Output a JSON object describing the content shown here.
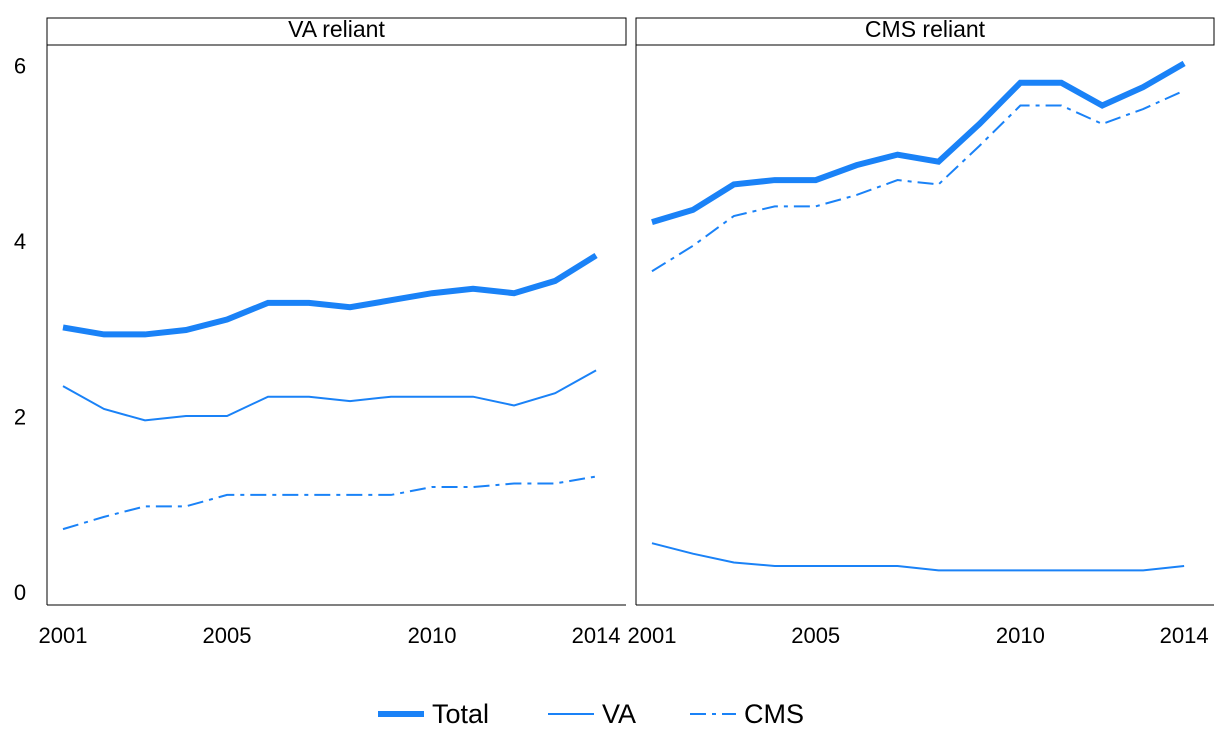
{
  "chart_data": [
    {
      "type": "line",
      "title": "VA reliant",
      "x": [
        2001,
        2002,
        2003,
        2004,
        2005,
        2006,
        2007,
        2008,
        2009,
        2010,
        2011,
        2012,
        2013,
        2014
      ],
      "xlim": [
        2000.61,
        2014.73
      ],
      "xticks": [
        2001,
        2005,
        2010,
        2014
      ],
      "ylim": [
        -0.125,
        6.26
      ],
      "yticks": [
        0,
        2,
        4,
        6
      ],
      "legend": "bottom",
      "series": [
        {
          "name": "Total",
          "color": "#1a82f7",
          "linewidth": 6,
          "linestyle": "solid",
          "values": [
            3.04,
            2.96,
            2.96,
            3.01,
            3.13,
            3.32,
            3.32,
            3.27,
            3.35,
            3.43,
            3.48,
            3.43,
            3.57,
            3.86
          ]
        },
        {
          "name": "VA",
          "color": "#1a82f7",
          "linewidth": 2,
          "linestyle": "solid",
          "values": [
            2.37,
            2.11,
            1.98,
            2.03,
            2.03,
            2.25,
            2.25,
            2.2,
            2.25,
            2.25,
            2.25,
            2.15,
            2.29,
            2.55
          ]
        },
        {
          "name": "CMS",
          "color": "#1a82f7",
          "linewidth": 2,
          "linestyle": "dashdot",
          "values": [
            0.74,
            0.88,
            1.0,
            1.0,
            1.13,
            1.13,
            1.13,
            1.13,
            1.13,
            1.22,
            1.22,
            1.26,
            1.26,
            1.34
          ]
        }
      ]
    },
    {
      "type": "line",
      "title": "CMS reliant",
      "x": [
        2001,
        2002,
        2003,
        2004,
        2005,
        2006,
        2007,
        2008,
        2009,
        2010,
        2011,
        2012,
        2013,
        2014
      ],
      "xlim": [
        2000.61,
        2014.73
      ],
      "xticks": [
        2001,
        2005,
        2010,
        2014
      ],
      "ylim": [
        -0.125,
        6.26
      ],
      "series": [
        {
          "name": "Total",
          "color": "#1a82f7",
          "linewidth": 6,
          "linestyle": "solid",
          "values": [
            4.24,
            4.38,
            4.67,
            4.72,
            4.72,
            4.89,
            5.01,
            4.93,
            5.36,
            5.83,
            5.83,
            5.57,
            5.78,
            6.05
          ]
        },
        {
          "name": "VA",
          "color": "#1a82f7",
          "linewidth": 2,
          "linestyle": "solid",
          "values": [
            0.58,
            0.46,
            0.36,
            0.32,
            0.32,
            0.32,
            0.32,
            0.27,
            0.27,
            0.27,
            0.27,
            0.27,
            0.27,
            0.32
          ]
        },
        {
          "name": "CMS",
          "color": "#1a82f7",
          "linewidth": 2,
          "linestyle": "dashdot",
          "values": [
            3.68,
            3.97,
            4.31,
            4.42,
            4.42,
            4.55,
            4.72,
            4.67,
            5.11,
            5.57,
            5.57,
            5.36,
            5.53,
            5.74
          ]
        }
      ]
    }
  ]
}
